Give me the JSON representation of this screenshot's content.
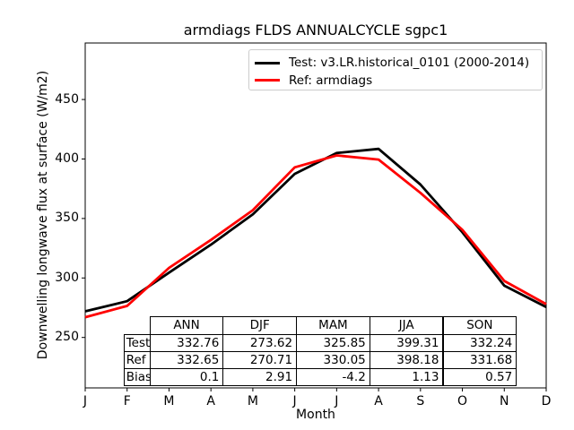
{
  "figure": {
    "background": "#ffffff"
  },
  "chart_data": {
    "type": "line",
    "title": "armdiags FLDS ANNUALCYCLE sgpc1",
    "xlabel": "Month",
    "ylabel": "Downwelling longwave flux at surface (W/m2)",
    "x_tick_labels": [
      "J",
      "F",
      "M",
      "A",
      "M",
      "J",
      "J",
      "A",
      "S",
      "O",
      "N",
      "D"
    ],
    "y_ticks": [
      250,
      300,
      350,
      400,
      450
    ],
    "ylim": [
      207.6,
      497.5
    ],
    "grid": false,
    "legend_position": "upper right",
    "axis_color": "#000000",
    "series": [
      {
        "name": "Test: v3.LR.historical_0101 (2000-2014)",
        "color": "#000000",
        "values": [
          272,
          280.5,
          304.5,
          328,
          353.5,
          387.5,
          405,
          408.5,
          378.5,
          338.5,
          293.5,
          275.5
        ]
      },
      {
        "name": "Ref: armdiags",
        "color": "#ff0000",
        "values": [
          267,
          276.5,
          308.5,
          332,
          357,
          393,
          403,
          399.5,
          371.5,
          340.5,
          297.5,
          278
        ]
      }
    ],
    "stats_table": {
      "columns": [
        "ANN",
        "DJF",
        "MAM",
        "JJA",
        "SON"
      ],
      "rows": [
        {
          "label": "Test",
          "values": [
            "332.76",
            "273.62",
            "325.85",
            "399.31",
            "332.24"
          ]
        },
        {
          "label": "Ref",
          "values": [
            "332.65",
            "270.71",
            "330.05",
            "398.18",
            "331.68"
          ]
        },
        {
          "label": "Bias",
          "values": [
            "0.1",
            "2.91",
            "-4.2",
            "1.13",
            "0.57"
          ]
        }
      ]
    }
  }
}
